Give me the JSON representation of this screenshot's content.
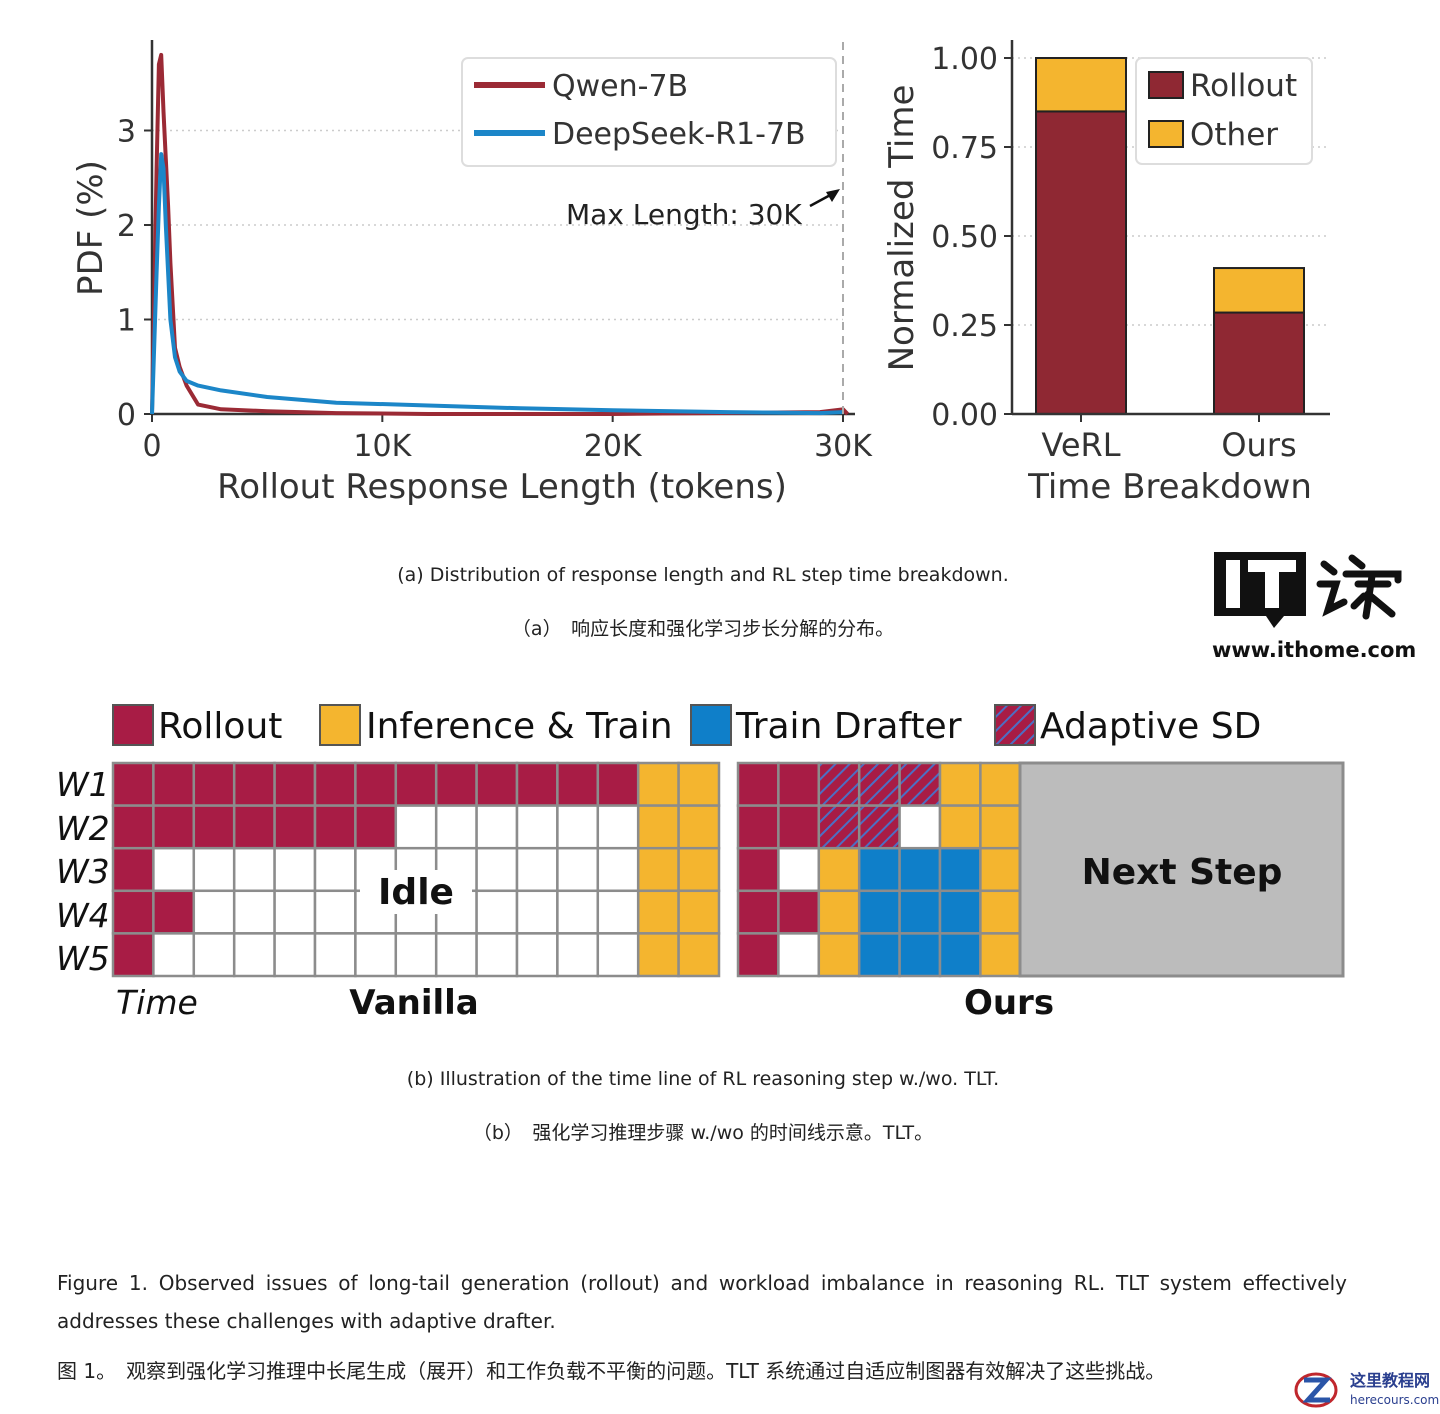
{
  "chart_data": [
    {
      "type": "line",
      "xlabel": "Rollout Response Length (tokens)",
      "ylabel": "PDF (%)",
      "xlim": [
        0,
        30000
      ],
      "ylim": [
        0,
        4
      ],
      "x_ticks": [
        "0",
        "10K",
        "20K",
        "30K"
      ],
      "y_ticks": [
        "0",
        "1",
        "2",
        "3"
      ],
      "annotation": "Max Length: 30K",
      "legend_position": "top-right",
      "grid": "horizontal dotted",
      "series": [
        {
          "name": "Qwen-7B",
          "color": "#9b2a35",
          "x": [
            0,
            200,
            300,
            400,
            500,
            600,
            700,
            800,
            1000,
            1200,
            1500,
            2000,
            3000,
            5000,
            8000,
            12000,
            20000,
            29000,
            30000,
            30200
          ],
          "y": [
            0,
            2.6,
            3.7,
            3.8,
            3.2,
            2.7,
            2.2,
            1.6,
            0.7,
            0.5,
            0.3,
            0.1,
            0.05,
            0.03,
            0.01,
            0,
            0,
            0.02,
            0.05,
            0
          ]
        },
        {
          "name": "DeepSeek-R1-7B",
          "color": "#1c86c8",
          "x": [
            0,
            200,
            300,
            400,
            500,
            600,
            700,
            800,
            1000,
            1200,
            1500,
            2000,
            3000,
            5000,
            8000,
            12000,
            16000,
            20000,
            25000,
            29000,
            30000
          ],
          "y": [
            0,
            1.5,
            2.2,
            2.75,
            2.6,
            2.0,
            1.5,
            1.0,
            0.6,
            0.45,
            0.35,
            0.3,
            0.25,
            0.18,
            0.12,
            0.09,
            0.06,
            0.04,
            0.02,
            0.01,
            0.02
          ]
        }
      ]
    },
    {
      "type": "bar",
      "stacked": true,
      "xlabel": "Time Breakdown",
      "ylabel": "Normalized Time",
      "ylim": [
        0,
        1.0
      ],
      "y_ticks": [
        "0.00",
        "0.25",
        "0.50",
        "0.75",
        "1.00"
      ],
      "categories": [
        "VeRL",
        "Ours"
      ],
      "legend_position": "top-right",
      "series": [
        {
          "name": "Rollout",
          "color": "#8f2833",
          "values": [
            0.85,
            0.285
          ]
        },
        {
          "name": "Other",
          "color": "#f4b52f",
          "values": [
            0.15,
            0.125
          ]
        }
      ]
    }
  ],
  "captions": {
    "a_en": "(a) Distribution of response length and RL step time breakdown.",
    "a_zh": "（a）　响应长度和强化学习步长分解的分布。",
    "b_en": "(b) Illustration of the time line of RL reasoning step w./wo. TLT.",
    "b_zh": "（b）　强化学习推理步骤 w./wo 的时间线示意。TLT。"
  },
  "figure_caption_en": "Figure 1. Observed issues of long-tail generation (rollout) and workload imbalance in reasoning RL. TLT system effectively addresses these challenges with adaptive drafter.",
  "figure_caption_zh": "图 1。　观察到强化学习推理中长尾生成（展开）和工作负载不平衡的问题。TLT 系统通过自适应制图器有效解决了这些挑战。",
  "timeline": {
    "legend": [
      "Rollout",
      "Inference & Train",
      "Train Drafter",
      "Adaptive SD"
    ],
    "workers": [
      "W1",
      "W2",
      "W3",
      "W4",
      "W5"
    ],
    "time_label": "Time",
    "vanilla_title": "Vanilla",
    "ours_title": "Ours",
    "idle_label": "Idle",
    "next_step_label": "Next Step",
    "colors": {
      "rollout": "#a81c45",
      "infer": "#f4b52f",
      "drafter": "#0f7fc9",
      "grid": "#8c8c8c",
      "next": "#bcbcbc"
    },
    "vanilla_rollout_cells": [
      13,
      7,
      1,
      2,
      1
    ],
    "vanilla_grid_cols": 13,
    "vanilla_infer_cols": 2,
    "ours_rows": [
      [
        "R",
        "R",
        "S",
        "S",
        "S",
        "I",
        "I"
      ],
      [
        "R",
        "R",
        "S",
        "S",
        "E",
        "I",
        "I"
      ],
      [
        "R",
        "E",
        "I",
        "D",
        "D",
        "D",
        "I"
      ],
      [
        "R",
        "R",
        "I",
        "D",
        "D",
        "D",
        "I"
      ],
      [
        "R",
        "E",
        "I",
        "D",
        "D",
        "D",
        "I"
      ]
    ]
  },
  "watermark": {
    "logo_text": "IT之家",
    "url": "www.ithome.com",
    "site2_name": "这里教程网",
    "site2_url": "herecours.com"
  }
}
